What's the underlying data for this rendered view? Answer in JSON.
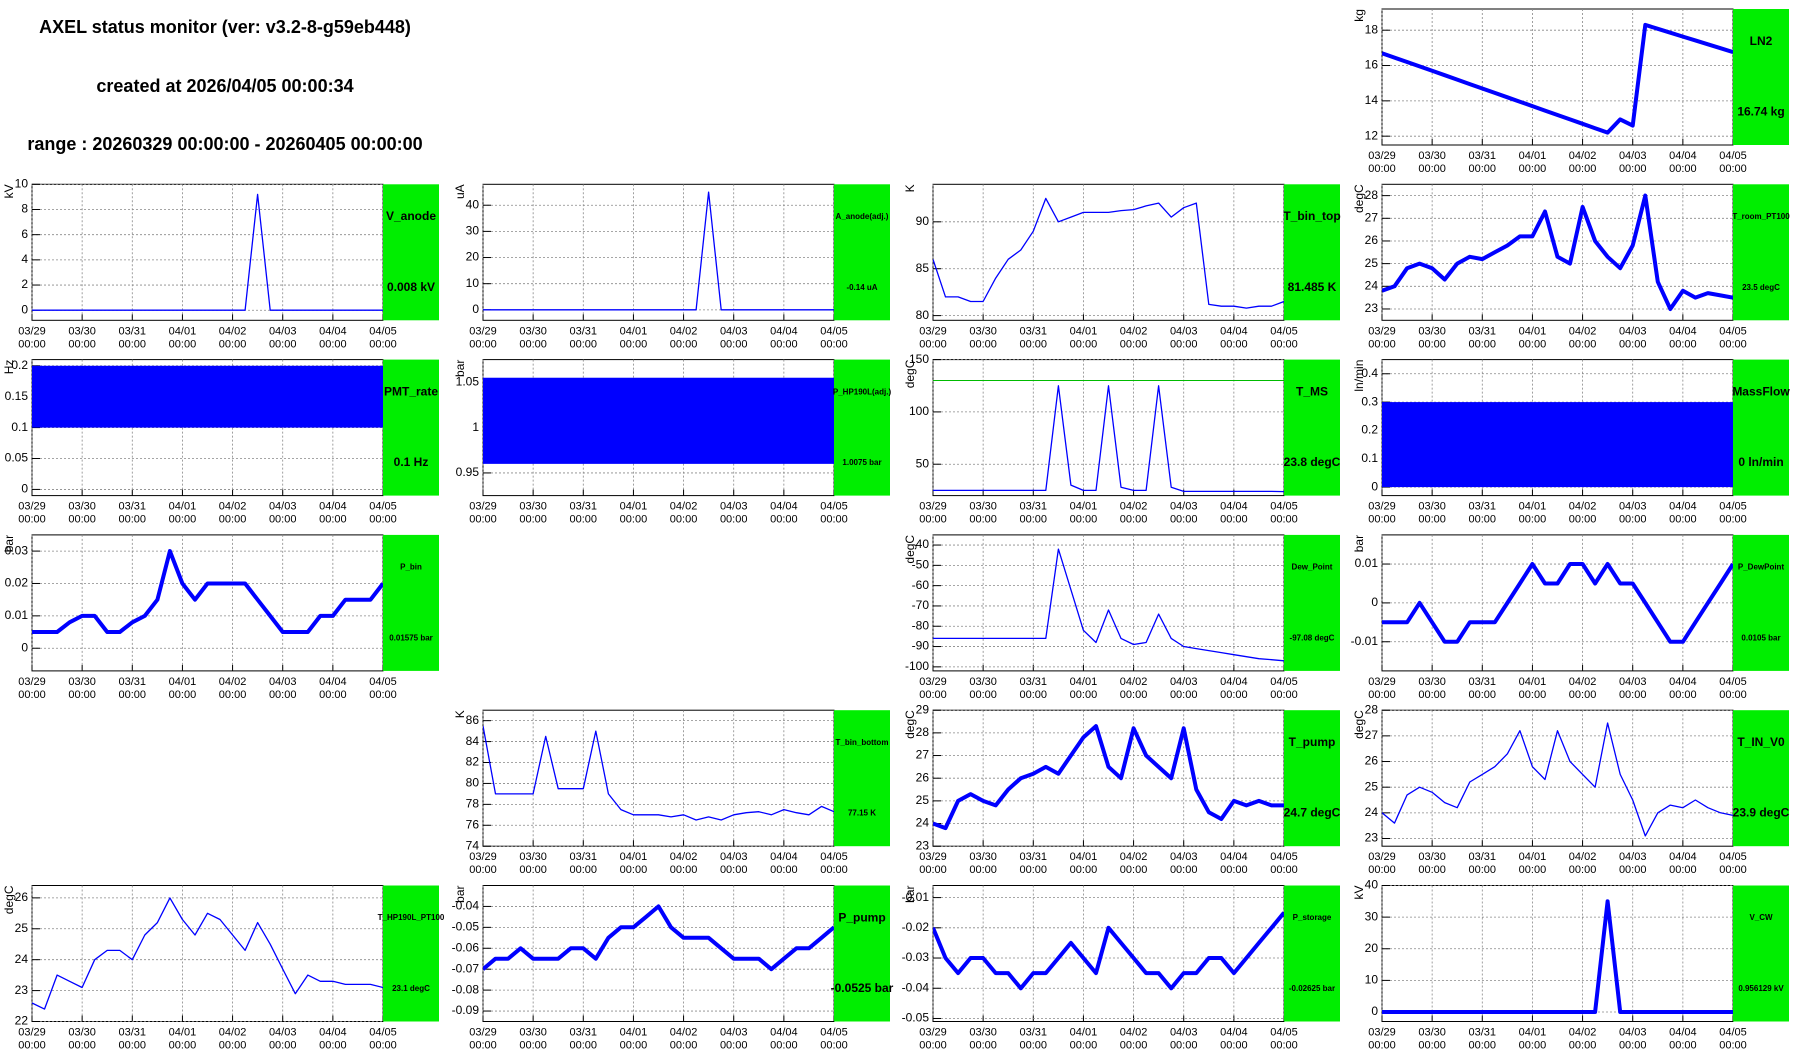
{
  "header": {
    "title": "AXEL status monitor (ver: v3.2-8-g59eb448)",
    "created": "created at 2026/04/05 00:00:34",
    "range": "range : 20260329 00:00:00 - 20260405 00:00:00"
  },
  "time_axis": {
    "xlim": [
      "03/29 00:00",
      "04/05 00:00"
    ],
    "xticks": [
      "03/29 00:00",
      "03/30 00:00",
      "03/31 00:00",
      "04/01 00:00",
      "04/02 00:00",
      "04/03 00:00",
      "04/04 00:00",
      "04/05 00:00"
    ]
  },
  "style": {
    "line_color": "#0000ff",
    "box_color": "#00ee00",
    "threshold_color": "#00bb00",
    "grid": true
  },
  "chart_data": [
    {
      "type": "line",
      "name": "LN2",
      "value_label": "16.74 kg",
      "ylabel": "kg",
      "ylim": [
        11.5,
        19.2
      ],
      "yticks": [
        12,
        14,
        16,
        18
      ],
      "values": [
        16.7,
        16.45,
        16.2,
        15.95,
        15.7,
        15.45,
        15.2,
        14.95,
        14.7,
        14.45,
        14.2,
        13.95,
        13.7,
        13.45,
        13.2,
        12.95,
        12.7,
        12.45,
        12.2,
        12.95,
        12.6,
        18.3,
        18.08,
        17.86,
        17.64,
        17.42,
        17.2,
        16.98,
        16.76
      ]
    },
    {
      "type": "line",
      "name": "V_anode",
      "value_label": "0.008 kV",
      "ylabel": "kV",
      "ylim": [
        -0.8,
        10
      ],
      "yticks": [
        0,
        2,
        4,
        6,
        8,
        10
      ],
      "values": [
        0,
        0,
        0,
        0,
        0,
        0,
        0,
        0,
        0,
        0,
        0,
        0,
        0,
        0,
        0,
        0,
        0,
        0,
        9.2,
        0,
        0,
        0,
        0,
        0,
        0,
        0,
        0,
        0,
        0
      ]
    },
    {
      "type": "line",
      "name": "A_anode(adj.)",
      "value_label": "-0.14 uA",
      "ylabel": "uA",
      "ylim": [
        -4,
        48
      ],
      "yticks": [
        0,
        10,
        20,
        30,
        40
      ],
      "values": [
        0,
        0,
        0,
        0,
        0,
        0,
        0,
        0,
        0,
        0,
        0,
        0,
        0,
        0,
        0,
        0,
        0,
        0,
        45,
        0,
        0,
        0,
        0,
        0,
        0,
        0,
        0,
        0,
        0
      ]
    },
    {
      "type": "line",
      "name": "T_bin_top",
      "value_label": "81.485 K",
      "ylabel": "K",
      "ylim": [
        79.5,
        94
      ],
      "yticks": [
        80,
        85,
        90
      ],
      "values": [
        86,
        82,
        82,
        81.5,
        81.5,
        84,
        86,
        87,
        89,
        92.5,
        90,
        90.5,
        91,
        91,
        91,
        91.2,
        91.3,
        91.7,
        92,
        90.5,
        91.5,
        92,
        81.2,
        81,
        81,
        80.8,
        81,
        81,
        81.5
      ]
    },
    {
      "type": "line",
      "name": "T_room_PT100",
      "value_label": "23.5 degC",
      "ylabel": "degC",
      "ylim": [
        22.5,
        28.5
      ],
      "yticks": [
        23,
        24,
        25,
        26,
        27,
        28
      ],
      "values": [
        23.8,
        24,
        24.8,
        25,
        24.8,
        24.3,
        25,
        25.3,
        25.2,
        25.5,
        25.8,
        26.2,
        26.2,
        27.3,
        25.3,
        25,
        27.5,
        26,
        25.3,
        24.8,
        25.8,
        28,
        24.2,
        23,
        23.8,
        23.5,
        23.7,
        23.6,
        23.5
      ]
    },
    {
      "type": "band",
      "name": "PMT_rate",
      "value_label": "0.1 Hz",
      "ylabel": "Hz",
      "ylim": [
        -0.01,
        0.21
      ],
      "yticks": [
        0,
        0.05,
        0.1,
        0.15,
        0.2
      ],
      "band_low": 0.1,
      "band_high": 0.2
    },
    {
      "type": "band",
      "name": "P_HP190L(adj.)",
      "value_label": "1.0075 bar",
      "ylabel": "bar",
      "ylim": [
        0.925,
        1.075
      ],
      "yticks": [
        0.95,
        1,
        1.05
      ],
      "band_low": 0.96,
      "band_high": 1.055
    },
    {
      "type": "line",
      "name": "T_MS",
      "value_label": "23.8 degC",
      "ylabel": "degC",
      "ylim": [
        20,
        150
      ],
      "yticks": [
        50,
        100,
        150
      ],
      "threshold": 130,
      "values": [
        25,
        25,
        25,
        25,
        25,
        25,
        25,
        25,
        25,
        25,
        125,
        30,
        25,
        25,
        125,
        28,
        25,
        25,
        125,
        28,
        24,
        24,
        24,
        24,
        24,
        24,
        24,
        24,
        23.8
      ]
    },
    {
      "type": "band",
      "name": "MassFlow",
      "value_label": "0 ln/min",
      "ylabel": "ln/min",
      "ylim": [
        -0.03,
        0.45
      ],
      "yticks": [
        0,
        0.1,
        0.2,
        0.3,
        0.4
      ],
      "band_low": 0,
      "band_high": 0.3
    },
    {
      "type": "line",
      "name": "P_bin",
      "value_label": "0.01575 bar",
      "ylabel": "bar",
      "ylim": [
        -0.007,
        0.035
      ],
      "yticks": [
        0,
        0.01,
        0.02,
        0.03
      ],
      "values": [
        0.005,
        0.005,
        0.005,
        0.008,
        0.01,
        0.01,
        0.005,
        0.005,
        0.008,
        0.01,
        0.015,
        0.03,
        0.02,
        0.015,
        0.02,
        0.02,
        0.02,
        0.02,
        0.015,
        0.01,
        0.005,
        0.005,
        0.005,
        0.01,
        0.01,
        0.015,
        0.015,
        0.015,
        0.02
      ]
    },
    {
      "type": "line",
      "name": "Dew_Point",
      "value_label": "-97.08 degC",
      "ylabel": "degC",
      "ylim": [
        -102,
        -35
      ],
      "yticks": [
        -100,
        -90,
        -80,
        -70,
        -60,
        -50,
        -40
      ],
      "values": [
        -86,
        -86,
        -86,
        -86,
        -86,
        -86,
        -86,
        -86,
        -86,
        -86,
        -42,
        -62,
        -82,
        -88,
        -72,
        -86,
        -89,
        -88,
        -74,
        -86,
        -90,
        -91,
        -92,
        -93,
        -94,
        -95,
        -96,
        -96.5,
        -97
      ]
    },
    {
      "type": "line",
      "name": "P_DewPoint",
      "value_label": "0.0105 bar",
      "ylabel": "bar",
      "ylim": [
        -0.0175,
        0.0175
      ],
      "yticks": [
        -0.01,
        0,
        0.01
      ],
      "values": [
        -0.005,
        -0.005,
        -0.005,
        0,
        -0.005,
        -0.01,
        -0.01,
        -0.005,
        -0.005,
        -0.005,
        0,
        0.005,
        0.01,
        0.005,
        0.005,
        0.01,
        0.01,
        0.005,
        0.01,
        0.005,
        0.005,
        0,
        -0.005,
        -0.01,
        -0.01,
        -0.005,
        0,
        0.005,
        0.01
      ]
    },
    {
      "type": "line",
      "name": "T_bin_bottom",
      "value_label": "77.15 K",
      "ylabel": "K",
      "ylim": [
        74,
        87
      ],
      "yticks": [
        74,
        76,
        78,
        80,
        82,
        84,
        86
      ],
      "values": [
        85.5,
        79,
        79,
        79,
        79,
        84.5,
        79.5,
        79.5,
        79.5,
        85,
        79,
        77.5,
        77,
        77,
        77,
        76.8,
        77,
        76.5,
        76.8,
        76.5,
        77,
        77.2,
        77.3,
        77,
        77.5,
        77.2,
        77,
        77.8,
        77.3
      ]
    },
    {
      "type": "line",
      "name": "T_pump",
      "value_label": "24.7 degC",
      "ylabel": "degC",
      "ylim": [
        23,
        29
      ],
      "yticks": [
        23,
        24,
        25,
        26,
        27,
        28,
        29
      ],
      "values": [
        24,
        23.8,
        25,
        25.3,
        25,
        24.8,
        25.5,
        26,
        26.2,
        26.5,
        26.2,
        27,
        27.8,
        28.3,
        26.5,
        26,
        28.2,
        27,
        26.5,
        26,
        28.2,
        25.5,
        24.5,
        24.2,
        25,
        24.8,
        25,
        24.8,
        24.8
      ]
    },
    {
      "type": "line",
      "name": "T_IN_V0",
      "value_label": "23.9 degC",
      "ylabel": "degC",
      "ylim": [
        22.7,
        28
      ],
      "yticks": [
        23,
        24,
        25,
        26,
        27,
        28
      ],
      "values": [
        24,
        23.6,
        24.7,
        25,
        24.8,
        24.4,
        24.2,
        25.2,
        25.5,
        25.8,
        26.3,
        27.2,
        25.8,
        25.3,
        27.2,
        26,
        25.5,
        25,
        27.5,
        25.5,
        24.5,
        23.1,
        24,
        24.3,
        24.2,
        24.5,
        24.2,
        24,
        23.9
      ]
    },
    {
      "type": "line",
      "name": "T_HP190L_PT100",
      "value_label": "23.1 degC",
      "ylabel": "degC",
      "ylim": [
        22,
        26.4
      ],
      "yticks": [
        22,
        23,
        24,
        25,
        26
      ],
      "values": [
        22.6,
        22.4,
        23.5,
        23.3,
        23.1,
        24,
        24.3,
        24.3,
        24,
        24.8,
        25.2,
        26,
        25.3,
        24.8,
        25.5,
        25.3,
        24.8,
        24.3,
        25.2,
        24.5,
        23.7,
        22.9,
        23.5,
        23.3,
        23.3,
        23.2,
        23.2,
        23.2,
        23.1
      ]
    },
    {
      "type": "line",
      "name": "P_pump",
      "value_label": "-0.0525 bar",
      "ylabel": "bar",
      "ylim": [
        -0.095,
        -0.03
      ],
      "yticks": [
        -0.09,
        -0.08,
        -0.07,
        -0.06,
        -0.05,
        -0.04
      ],
      "values": [
        -0.07,
        -0.065,
        -0.065,
        -0.06,
        -0.065,
        -0.065,
        -0.065,
        -0.06,
        -0.06,
        -0.065,
        -0.055,
        -0.05,
        -0.05,
        -0.045,
        -0.04,
        -0.05,
        -0.055,
        -0.055,
        -0.055,
        -0.06,
        -0.065,
        -0.065,
        -0.065,
        -0.07,
        -0.065,
        -0.06,
        -0.06,
        -0.055,
        -0.05
      ]
    },
    {
      "type": "line",
      "name": "P_storage",
      "value_label": "-0.02625 bar",
      "ylabel": "bar",
      "ylim": [
        -0.051,
        -0.006
      ],
      "yticks": [
        -0.05,
        -0.04,
        -0.03,
        -0.02,
        -0.01
      ],
      "values": [
        -0.02,
        -0.03,
        -0.035,
        -0.03,
        -0.03,
        -0.035,
        -0.035,
        -0.04,
        -0.035,
        -0.035,
        -0.03,
        -0.025,
        -0.03,
        -0.035,
        -0.02,
        -0.025,
        -0.03,
        -0.035,
        -0.035,
        -0.04,
        -0.035,
        -0.035,
        -0.03,
        -0.03,
        -0.035,
        -0.03,
        -0.025,
        -0.02,
        -0.015
      ]
    },
    {
      "type": "line",
      "name": "V_CW",
      "value_label": "0.956129 kV",
      "ylabel": "kV",
      "ylim": [
        -3,
        40
      ],
      "yticks": [
        0,
        10,
        20,
        30,
        40
      ],
      "values": [
        0,
        0,
        0,
        0,
        0,
        0,
        0,
        0,
        0,
        0,
        0,
        0,
        0,
        0,
        0,
        0,
        0,
        0,
        35,
        0,
        0,
        0,
        0,
        0,
        0,
        0,
        0,
        0,
        0
      ]
    }
  ]
}
